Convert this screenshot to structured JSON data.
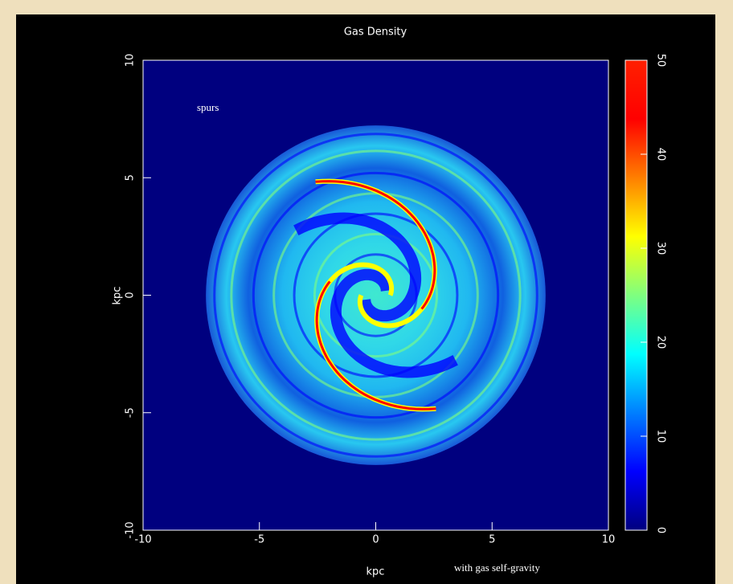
{
  "chart_data": {
    "type": "heatmap",
    "title": "Gas Density",
    "x_label": "kpc",
    "y_label": "kpc",
    "xlim": [
      -10,
      10
    ],
    "ylim": [
      -10,
      10
    ],
    "xticks": [
      -10,
      -5,
      0,
      5,
      10
    ],
    "yticks": [
      -10,
      -5,
      0,
      5,
      10
    ],
    "colorbar": {
      "lim": [
        0,
        50
      ],
      "ticks": [
        0,
        10,
        20,
        30,
        40,
        50
      ]
    },
    "colormap": "jet"
  },
  "annotations": [
    "spurs",
    "with gas self-gravity"
  ]
}
